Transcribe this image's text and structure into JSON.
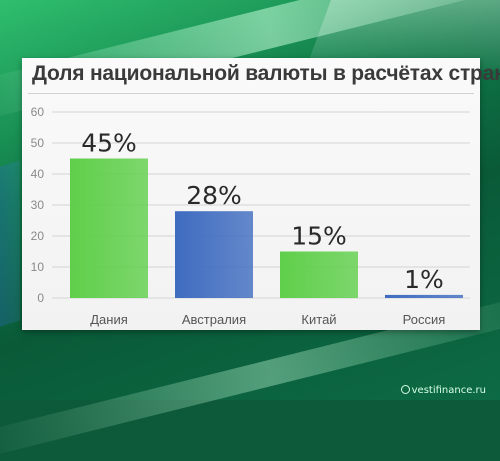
{
  "chart_data": {
    "type": "bar",
    "title": "Доля национальной валюты в расчётах стран",
    "categories": [
      "Дания",
      "Австралия",
      "Китай",
      "Россия"
    ],
    "values": [
      45,
      28,
      15,
      1
    ],
    "value_labels": [
      "45%",
      "28%",
      "15%",
      "1%"
    ],
    "bar_colors": [
      "#5fcf4a",
      "#3f6cc0",
      "#5fcf4a",
      "#3f6cc0"
    ],
    "ylim": [
      0,
      60
    ],
    "yticks": [
      0,
      10,
      20,
      30,
      40,
      50,
      60
    ],
    "grid": true,
    "xlabel": "",
    "ylabel": ""
  },
  "watermark": "vestifinance.ru"
}
